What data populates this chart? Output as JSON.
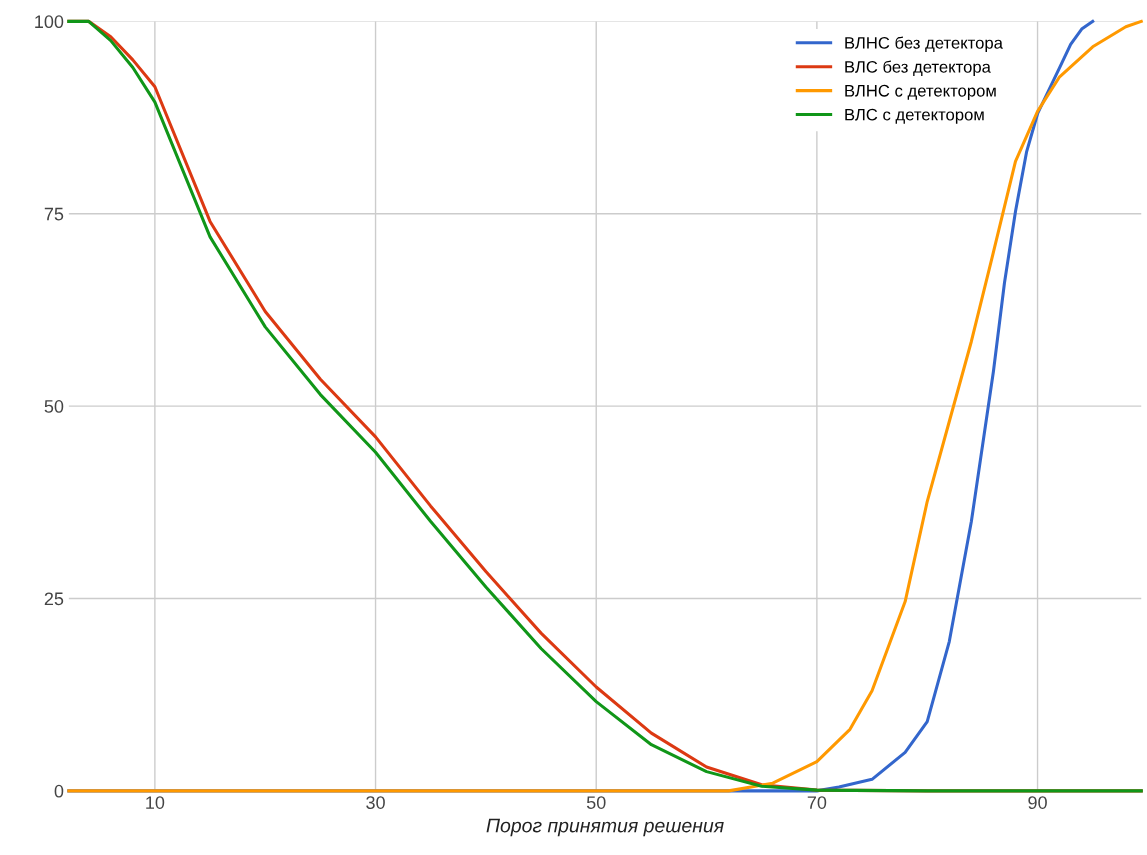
{
  "chart_data": {
    "type": "line",
    "xlabel": "Порог принятия решения",
    "xlim": [
      2.2,
      99.4
    ],
    "xticks": [
      10,
      30,
      50,
      70,
      90
    ],
    "ylim": [
      0,
      100
    ],
    "yticks": [
      0,
      25,
      50,
      75,
      100
    ],
    "grid": true,
    "legend": "top right",
    "marker": "none",
    "line_style": "solid",
    "series": [
      {
        "name": "ВЛНС без детектора",
        "color": "#3366cc",
        "x": [
          2.2,
          60,
          70,
          72,
          75,
          78,
          80,
          82,
          84,
          86,
          87,
          88,
          89,
          90,
          91,
          92,
          93,
          94,
          95
        ],
        "values": [
          0,
          0,
          0,
          0.5,
          1.5,
          5,
          9,
          19.4,
          35,
          54.5,
          66,
          75.3,
          83,
          88,
          91,
          94,
          97,
          99,
          100
        ]
      },
      {
        "name": "ВЛС без детектора",
        "color": "#dc3912",
        "x": [
          2.2,
          4,
          6,
          8,
          10,
          15,
          20,
          25,
          30,
          35,
          40,
          45,
          50,
          55,
          60,
          65,
          70,
          80,
          99.4
        ],
        "values": [
          100,
          100,
          98,
          95,
          91.5,
          74,
          62.3,
          53.5,
          46,
          37,
          28.5,
          20.5,
          13.5,
          7.5,
          3.1,
          0.8,
          0.1,
          0,
          0
        ]
      },
      {
        "name": "ВЛНС с детектором",
        "color": "#ff9900",
        "x": [
          2.2,
          62,
          66,
          70,
          73,
          75,
          78,
          80,
          82,
          84,
          86,
          88,
          90,
          92,
          95,
          98,
          99.4
        ],
        "values": [
          0,
          0,
          1,
          3.8,
          8,
          13,
          24.6,
          37.6,
          48,
          58.4,
          70,
          81.8,
          88.3,
          92.8,
          96.7,
          99.3,
          100
        ]
      },
      {
        "name": "ВЛС с детектором",
        "color": "#109618",
        "x": [
          2.2,
          4,
          6,
          8,
          10,
          15,
          20,
          25,
          30,
          35,
          40,
          45,
          50,
          55,
          60,
          65,
          70,
          80,
          99.4
        ],
        "values": [
          100,
          100,
          97.5,
          94,
          89.5,
          72,
          60.3,
          51.5,
          44,
          35,
          26.5,
          18.5,
          11.6,
          6,
          2.5,
          0.6,
          0.1,
          0,
          0
        ]
      }
    ]
  }
}
